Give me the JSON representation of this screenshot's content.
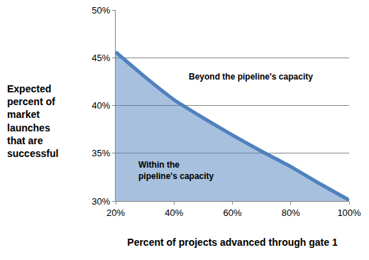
{
  "chart_data": {
    "type": "area",
    "x_label": "Percent of projects advanced through gate 1",
    "y_label": "Expected percent of market launches that are successful",
    "x": [
      20,
      30,
      40,
      50,
      60,
      70,
      80,
      90,
      100
    ],
    "values": [
      45.6,
      43.0,
      40.6,
      38.7,
      36.9,
      35.2,
      33.6,
      31.8,
      30.1
    ],
    "color": "#4f81bd",
    "xlim": [
      20,
      100
    ],
    "xticks": [
      {
        "value": 20,
        "label": "20%"
      },
      {
        "value": 40,
        "label": "40%"
      },
      {
        "value": 60,
        "label": "60%"
      },
      {
        "value": 80,
        "label": "80%"
      },
      {
        "value": 100,
        "label": "100%"
      }
    ],
    "ylim": [
      30,
      50
    ],
    "yticks": [
      {
        "value": 30,
        "label": "30%"
      },
      {
        "value": 35,
        "label": "35%"
      },
      {
        "value": 40,
        "label": "40%"
      },
      {
        "value": 45,
        "label": "45%"
      },
      {
        "value": 50,
        "label": "50%"
      }
    ],
    "grid": true,
    "annotations": [
      "Beyond the pipeline's capacity",
      "Within the pipeline's capacity"
    ]
  }
}
